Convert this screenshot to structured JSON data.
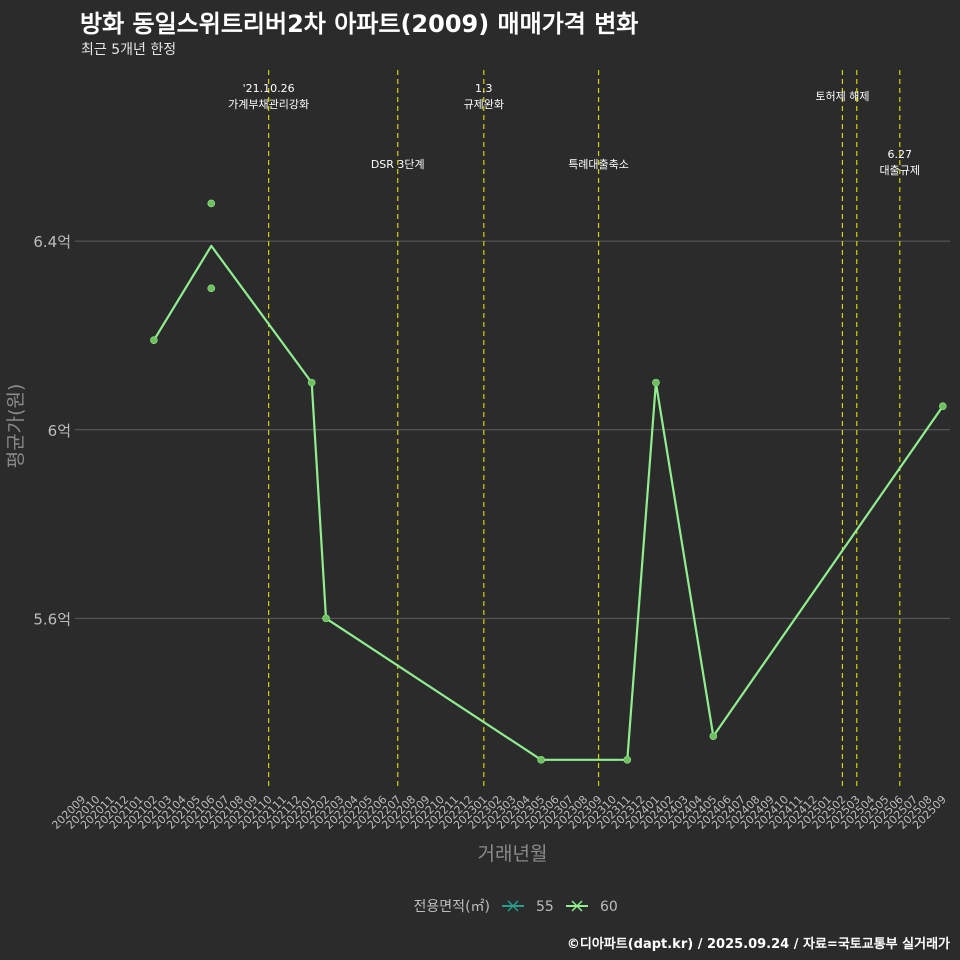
{
  "title": "방화 동일스위트리버2차 아파트(2009) 매매가격 변화",
  "subtitle": "최근 5개년 한정",
  "caption": "©디아파트(dapt.kr) / 2025.09.24 / 자료=국토교통부 실거래가",
  "colors": {
    "background": "#2b2b2b",
    "grid": "#5e5e5e",
    "text": "#bdbdbd",
    "series_55": "#2a9d8f",
    "series_60": "#90ee90",
    "point_60": "#6fbf5f",
    "event_line": "#d4d400"
  },
  "chart_data": {
    "type": "line",
    "xlabel": "거래년월",
    "ylabel": "평균가(원)",
    "x_categories": [
      "202009",
      "202010",
      "202011",
      "202012",
      "202101",
      "202102",
      "202103",
      "202104",
      "202105",
      "202106",
      "202107",
      "202108",
      "202109",
      "202110",
      "202111",
      "202112",
      "202201",
      "202202",
      "202203",
      "202204",
      "202205",
      "202206",
      "202207",
      "202208",
      "202209",
      "202210",
      "202211",
      "202212",
      "202301",
      "202302",
      "202303",
      "202304",
      "202305",
      "202306",
      "202307",
      "202308",
      "202309",
      "202310",
      "202311",
      "202312",
      "202401",
      "202402",
      "202403",
      "202404",
      "202405",
      "202406",
      "202407",
      "202408",
      "202409",
      "202410",
      "202411",
      "202412",
      "202501",
      "202502",
      "202503",
      "202504",
      "202505",
      "202506",
      "202507",
      "202508",
      "202509"
    ],
    "y_ticks": [
      {
        "value": 5.6,
        "label": "5.6억"
      },
      {
        "value": 6.0,
        "label": "6억"
      },
      {
        "value": 6.4,
        "label": "6.4억"
      }
    ],
    "ylim": [
      5.236,
      6.78
    ],
    "legend": {
      "title": "전용면적(㎡)",
      "position": "bottom",
      "entries": [
        {
          "name": "55",
          "color": "#2a9d8f"
        },
        {
          "name": "60",
          "color": "#90ee90"
        }
      ]
    },
    "series": [
      {
        "name": "60",
        "line": [
          {
            "x": "202102",
            "y": 6.19
          },
          {
            "x": "202106",
            "y": 6.39
          },
          {
            "x": "202201",
            "y": 6.1
          },
          {
            "x": "202202",
            "y": 5.6
          },
          {
            "x": "202305",
            "y": 5.3
          },
          {
            "x": "202311",
            "y": 5.3
          },
          {
            "x": "202401",
            "y": 6.1
          },
          {
            "x": "202405",
            "y": 5.35
          },
          {
            "x": "202509",
            "y": 6.05
          }
        ],
        "points": [
          {
            "x": "202102",
            "y": 6.19
          },
          {
            "x": "202106",
            "y": 6.48
          },
          {
            "x": "202106",
            "y": 6.3
          },
          {
            "x": "202201",
            "y": 6.1
          },
          {
            "x": "202202",
            "y": 5.6
          },
          {
            "x": "202305",
            "y": 5.3
          },
          {
            "x": "202311",
            "y": 5.3
          },
          {
            "x": "202401",
            "y": 6.1
          },
          {
            "x": "202405",
            "y": 5.35
          },
          {
            "x": "202509",
            "y": 6.05
          }
        ]
      }
    ],
    "events": [
      {
        "x": "202110",
        "lines": [
          "'21.10.26",
          "가계부채관리강화"
        ],
        "level": 0
      },
      {
        "x": "202207",
        "lines": [
          "DSR 3단계"
        ],
        "level": 1
      },
      {
        "x": "202301",
        "lines": [
          "1.3",
          "규제완화"
        ],
        "level": 0
      },
      {
        "x": "202309",
        "lines": [
          "특례대출축소"
        ],
        "level": 1
      },
      {
        "x": "202502",
        "lines": [
          "토허제 해제"
        ],
        "level": 2
      },
      {
        "x": "202503",
        "lines": [],
        "level": 2
      },
      {
        "x": "202506",
        "lines": [
          "6.27",
          "대출규제"
        ],
        "level": 3
      }
    ]
  }
}
